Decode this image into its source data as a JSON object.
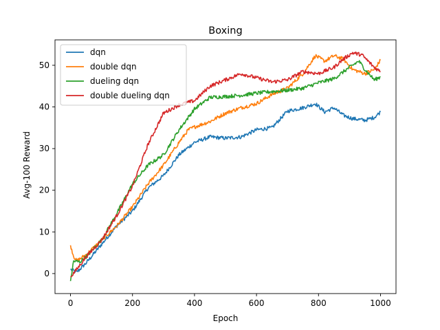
{
  "chart_data": {
    "type": "line",
    "title": "Boxing",
    "xlabel": "Epoch",
    "ylabel": "Avg-100 Reward",
    "xlim": [
      -50,
      1050
    ],
    "ylim": [
      -4.8,
      56.1
    ],
    "xticks": [
      0,
      200,
      400,
      600,
      800,
      1000
    ],
    "yticks": [
      0,
      10,
      20,
      30,
      40,
      50
    ],
    "grid": false,
    "legend_position": "top-left",
    "series": [
      {
        "name": "dqn",
        "color": "#1f77b4",
        "points": [
          [
            0,
            1
          ],
          [
            20,
            0.3
          ],
          [
            50,
            2.5
          ],
          [
            100,
            7
          ],
          [
            150,
            11.5
          ],
          [
            200,
            15
          ],
          [
            250,
            20.5
          ],
          [
            300,
            23.5
          ],
          [
            350,
            28.5
          ],
          [
            400,
            31.5
          ],
          [
            450,
            32.8
          ],
          [
            500,
            32.5
          ],
          [
            550,
            32.8
          ],
          [
            600,
            34.5
          ],
          [
            650,
            35
          ],
          [
            700,
            39
          ],
          [
            750,
            39.8
          ],
          [
            790,
            40.8
          ],
          [
            820,
            38.8
          ],
          [
            850,
            39.8
          ],
          [
            880,
            38
          ],
          [
            910,
            37.2
          ],
          [
            950,
            36.8
          ],
          [
            980,
            37.5
          ],
          [
            1000,
            38.8
          ]
        ]
      },
      {
        "name": "double dqn",
        "color": "#ff7f0e",
        "points": [
          [
            0,
            6.8
          ],
          [
            10,
            4.2
          ],
          [
            20,
            3
          ],
          [
            50,
            4.5
          ],
          [
            100,
            8
          ],
          [
            150,
            11.5
          ],
          [
            200,
            16
          ],
          [
            250,
            21.5
          ],
          [
            300,
            26
          ],
          [
            350,
            31.5
          ],
          [
            380,
            34.5
          ],
          [
            400,
            35.2
          ],
          [
            450,
            36.5
          ],
          [
            500,
            38.5
          ],
          [
            550,
            39.8
          ],
          [
            600,
            40.8
          ],
          [
            650,
            43
          ],
          [
            700,
            44.5
          ],
          [
            750,
            48
          ],
          [
            790,
            52.3
          ],
          [
            820,
            51
          ],
          [
            850,
            52.3
          ],
          [
            880,
            51.5
          ],
          [
            910,
            49
          ],
          [
            950,
            48
          ],
          [
            980,
            49
          ],
          [
            1000,
            51.2
          ]
        ]
      },
      {
        "name": "dueling dqn",
        "color": "#2ca02c",
        "points": [
          [
            0,
            -1.8
          ],
          [
            10,
            3
          ],
          [
            30,
            2.8
          ],
          [
            50,
            4
          ],
          [
            100,
            8
          ],
          [
            150,
            14.5
          ],
          [
            200,
            21.5
          ],
          [
            250,
            26
          ],
          [
            300,
            28.5
          ],
          [
            350,
            34.5
          ],
          [
            400,
            39.5
          ],
          [
            450,
            42.3
          ],
          [
            500,
            42.5
          ],
          [
            550,
            42.8
          ],
          [
            600,
            43.3
          ],
          [
            650,
            43.7
          ],
          [
            700,
            44
          ],
          [
            750,
            44.5
          ],
          [
            800,
            45.8
          ],
          [
            850,
            46.8
          ],
          [
            900,
            49.5
          ],
          [
            930,
            51
          ],
          [
            950,
            49
          ],
          [
            980,
            46.5
          ],
          [
            1000,
            47.2
          ]
        ]
      },
      {
        "name": "double dueling dqn",
        "color": "#d62728",
        "points": [
          [
            0,
            -0.8
          ],
          [
            20,
            1
          ],
          [
            50,
            4
          ],
          [
            100,
            8
          ],
          [
            150,
            14
          ],
          [
            200,
            21
          ],
          [
            250,
            31
          ],
          [
            300,
            38.5
          ],
          [
            350,
            40.5
          ],
          [
            400,
            41.5
          ],
          [
            450,
            45
          ],
          [
            500,
            46.5
          ],
          [
            550,
            48
          ],
          [
            600,
            47
          ],
          [
            650,
            46
          ],
          [
            700,
            46.5
          ],
          [
            750,
            48.5
          ],
          [
            800,
            48
          ],
          [
            850,
            49.5
          ],
          [
            880,
            51.5
          ],
          [
            910,
            53
          ],
          [
            940,
            52.5
          ],
          [
            960,
            51
          ],
          [
            980,
            49.5
          ],
          [
            1000,
            48.5
          ]
        ]
      }
    ]
  }
}
